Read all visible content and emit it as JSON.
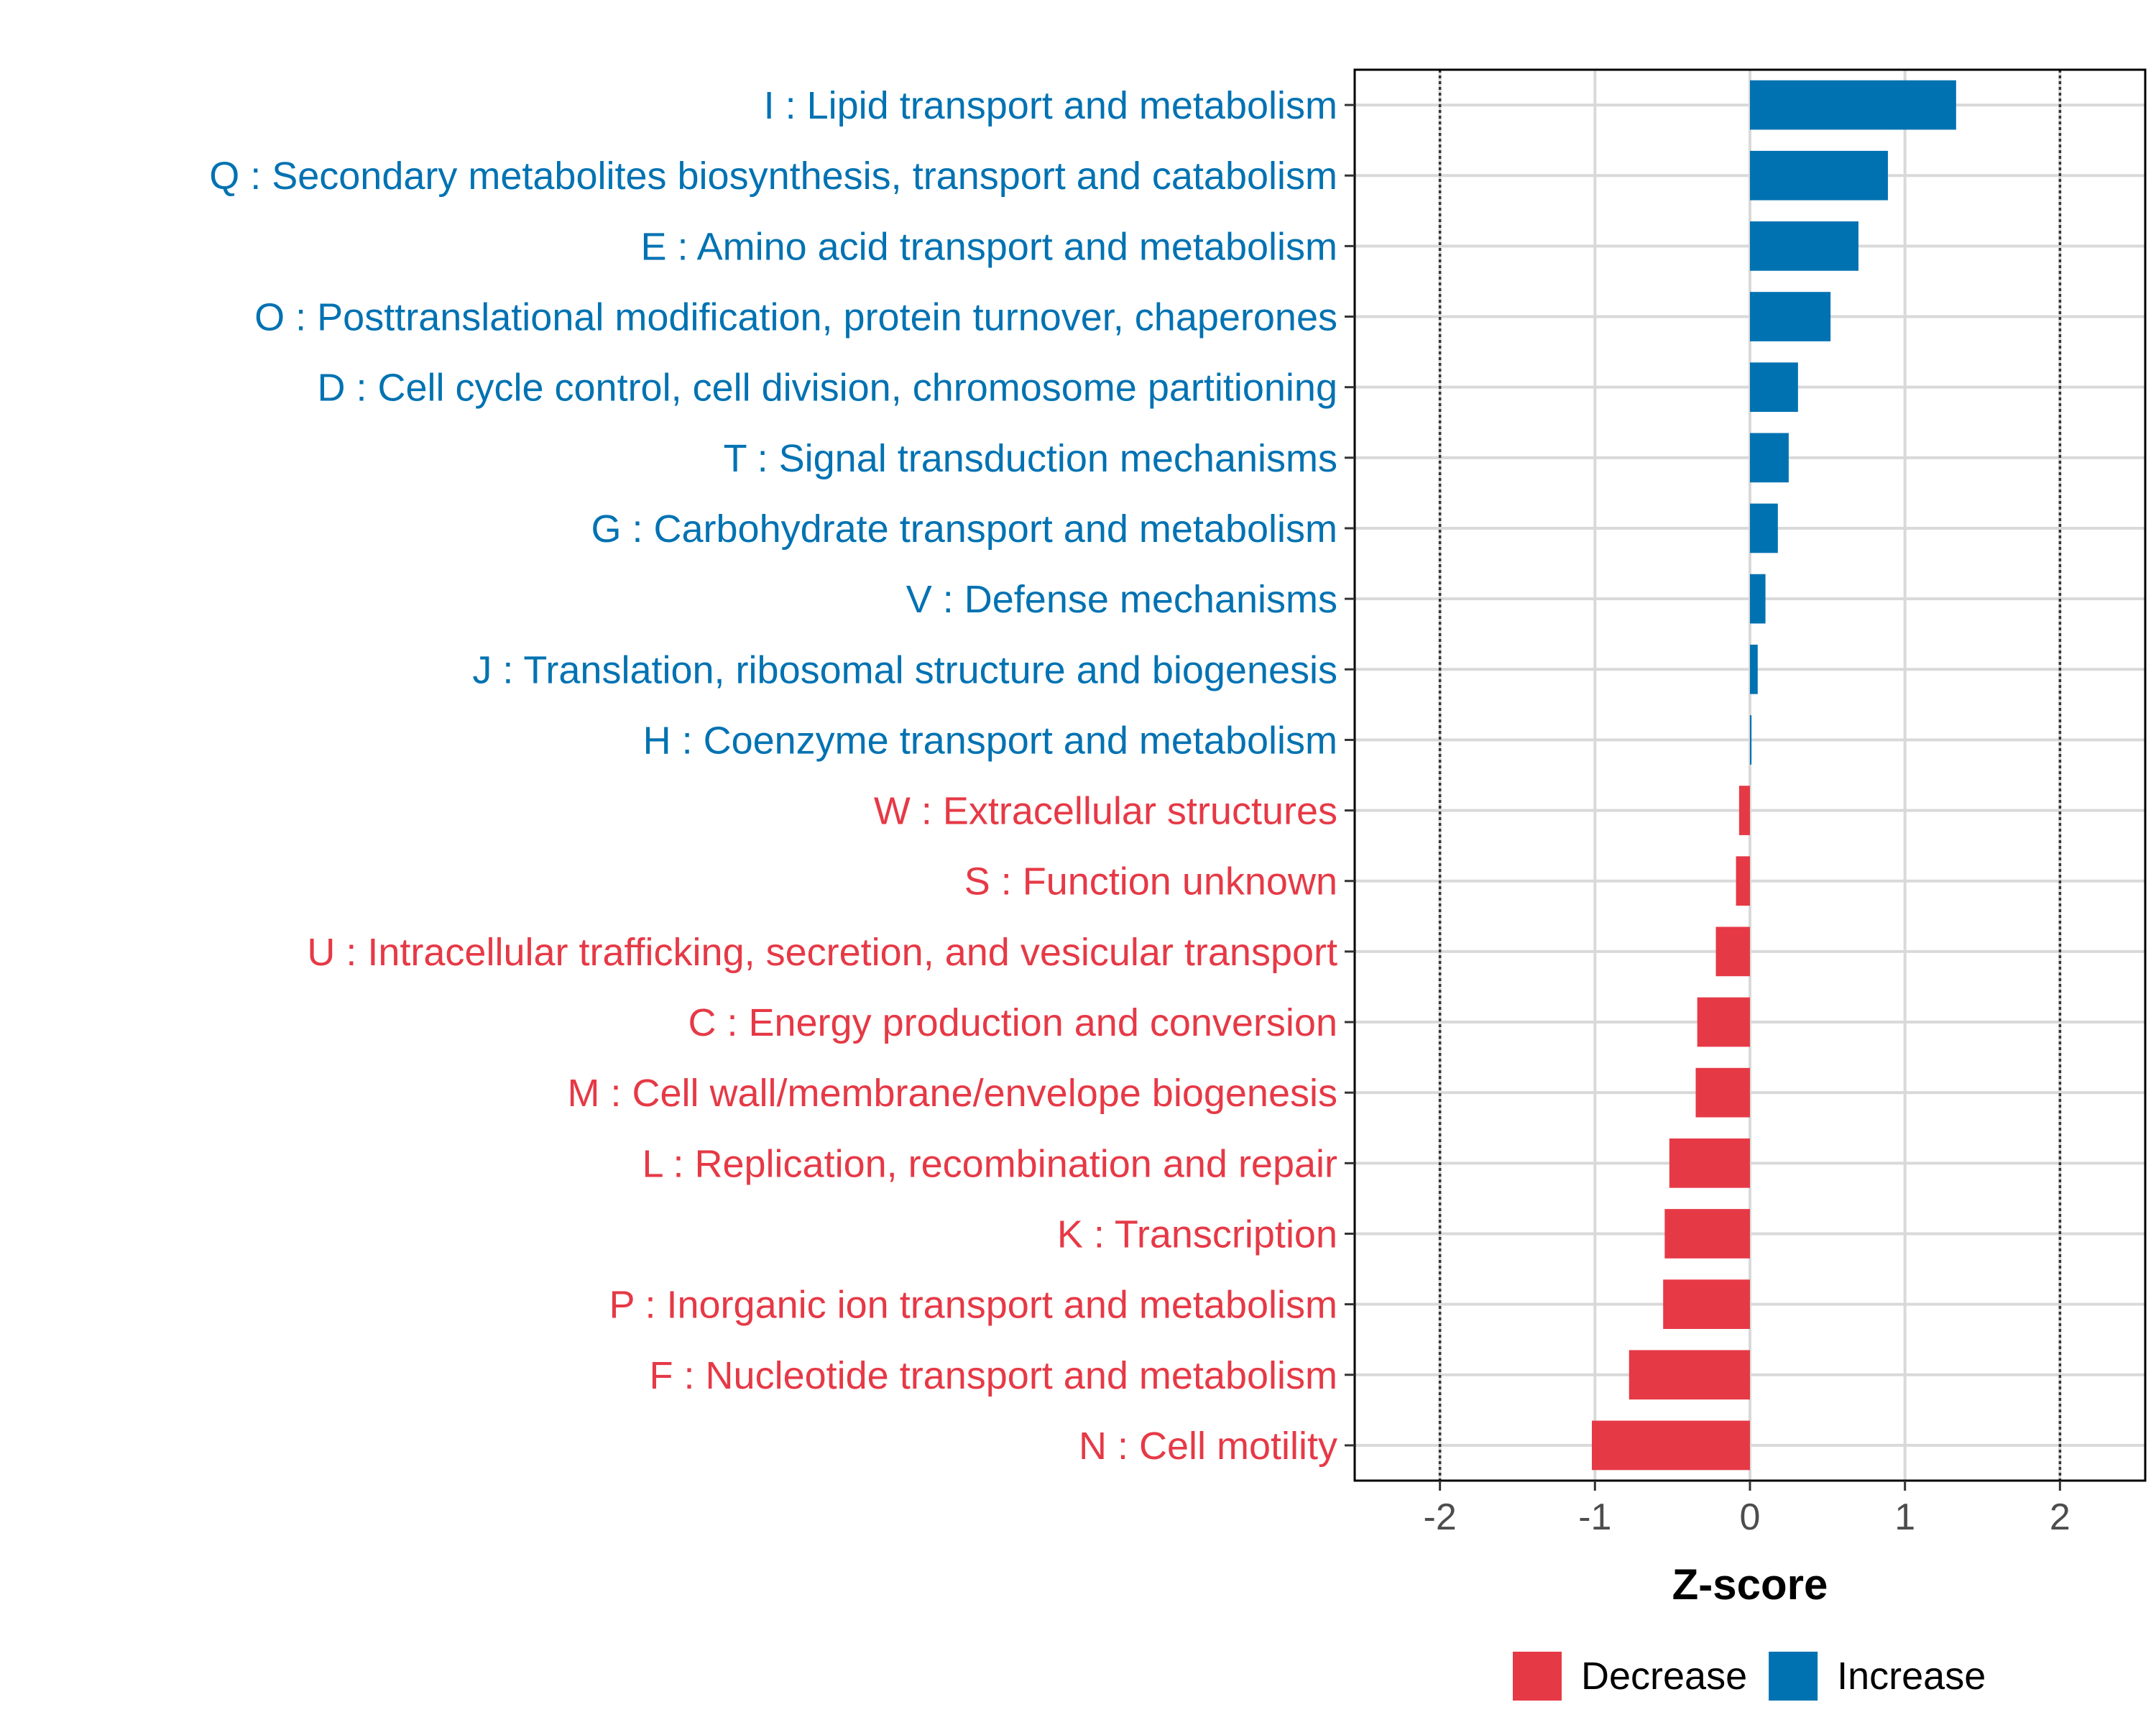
{
  "chart_data": {
    "type": "bar",
    "orientation": "horizontal",
    "title": "",
    "xlabel": "Z-score",
    "ylabel": "",
    "xlim": [
      -2.55,
      2.55
    ],
    "x_ticks": [
      "-2",
      "-1",
      "0",
      "1",
      "2"
    ],
    "x_tick_values": [
      -2,
      -1,
      0,
      1,
      2
    ],
    "reference_lines": [
      -2,
      2
    ],
    "grid": true,
    "legend_position": "bottom-right",
    "colors": {
      "Increase": "#0072B2",
      "Decrease": "#E63946"
    },
    "legend": [
      {
        "label": "Decrease",
        "color": "#E63946"
      },
      {
        "label": "Increase",
        "color": "#0072B2"
      }
    ],
    "categories": [
      "I : Lipid transport and metabolism",
      "Q : Secondary metabolites biosynthesis, transport and catabolism",
      "E : Amino acid transport and metabolism",
      "O : Posttranslational modification, protein turnover, chaperones",
      "D : Cell cycle control, cell division, chromosome partitioning",
      "T : Signal transduction mechanisms",
      "G : Carbohydrate transport and metabolism",
      "V : Defense mechanisms",
      "J : Translation, ribosomal structure and biogenesis",
      "H : Coenzyme transport and metabolism",
      "W : Extracellular structures",
      "S : Function unknown",
      "U : Intracellular trafficking, secretion, and vesicular transport",
      "C : Energy production and conversion",
      "M : Cell wall/membrane/envelope biogenesis",
      "L : Replication, recombination and repair",
      "K : Transcription",
      "P : Inorganic ion transport and metabolism",
      "F : Nucleotide transport and metabolism",
      "N : Cell motility"
    ],
    "values": [
      1.33,
      0.89,
      0.7,
      0.52,
      0.31,
      0.25,
      0.18,
      0.1,
      0.05,
      0.01,
      -0.07,
      -0.09,
      -0.22,
      -0.34,
      -0.35,
      -0.52,
      -0.55,
      -0.56,
      -0.78,
      -1.02
    ],
    "groups": [
      "Increase",
      "Increase",
      "Increase",
      "Increase",
      "Increase",
      "Increase",
      "Increase",
      "Increase",
      "Increase",
      "Increase",
      "Decrease",
      "Decrease",
      "Decrease",
      "Decrease",
      "Decrease",
      "Decrease",
      "Decrease",
      "Decrease",
      "Decrease",
      "Decrease"
    ]
  }
}
